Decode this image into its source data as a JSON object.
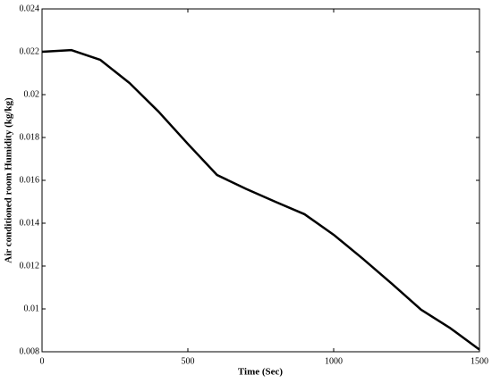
{
  "chart_data": {
    "type": "line",
    "xlabel": "Time (Sec)",
    "ylabel": "Air conditioned room Humidity (kg/kg)",
    "x": [
      0,
      100,
      200,
      300,
      400,
      500,
      600,
      700,
      800,
      900,
      1000,
      1100,
      1200,
      1300,
      1400,
      1500
    ],
    "series": [
      {
        "color": "#000000",
        "values": [
          0.022,
          0.02208,
          0.02162,
          0.02054,
          0.0192,
          0.0177,
          0.01625,
          0.0156,
          0.015,
          0.01442,
          0.01346,
          0.01234,
          0.01117,
          0.00996,
          0.0091,
          0.0081
        ]
      }
    ],
    "xlim": [
      0,
      1500
    ],
    "xticks": [
      0,
      500,
      1000,
      1500
    ],
    "ylim": [
      0.008,
      0.024
    ],
    "yticks": [
      0.008,
      0.01,
      0.012,
      0.014,
      0.016,
      0.018,
      0.02,
      0.022,
      0.024
    ]
  }
}
